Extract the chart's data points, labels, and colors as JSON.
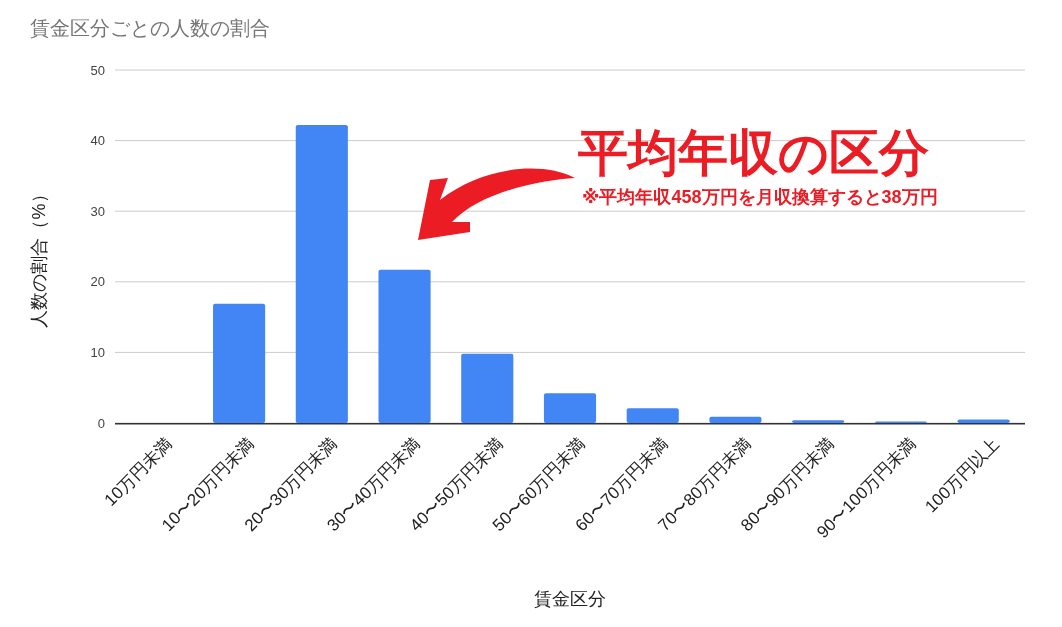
{
  "chart_data": {
    "type": "bar",
    "title": "賃金区分ごとの人数の割合",
    "xlabel": "賃金区分",
    "ylabel": "人数の割合（%）",
    "categories": [
      "10万円未満",
      "10〜20万円未満",
      "20〜30万円未満",
      "30〜40万円未満",
      "40〜50万円未満",
      "50〜60万円未満",
      "60〜70万円未満",
      "70〜80万円未満",
      "80〜90万円未満",
      "90〜100万円未満",
      "100万円以上"
    ],
    "values": [
      0,
      16.9,
      42.2,
      21.7,
      9.8,
      4.2,
      2.1,
      0.9,
      0.4,
      0.2,
      0.5
    ],
    "color": "#4285f4",
    "ylim": [
      0,
      50
    ],
    "yticks": [
      0,
      10,
      20,
      30,
      40,
      50
    ],
    "grid": "y",
    "annotations": [
      "平均年収の区分",
      "※平均年収458万円を月収換算すると38万円"
    ]
  }
}
